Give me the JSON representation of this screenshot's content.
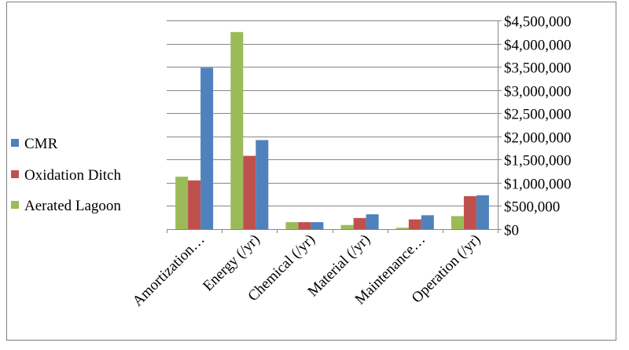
{
  "chart_data": {
    "type": "bar",
    "title": "",
    "xlabel": "",
    "ylabel": "",
    "categories": [
      "Amortization…",
      "Energy (/yr)",
      "Chemical (/yr)",
      "Material (/yr)",
      "Maintenance…",
      "Operation (/yr)"
    ],
    "series": [
      {
        "name": "Aerated Lagoon",
        "color": "#9bbb59",
        "values": [
          1130000,
          4250000,
          150000,
          90000,
          30000,
          280000
        ]
      },
      {
        "name": "Oxidation Ditch",
        "color": "#c0504d",
        "values": [
          1050000,
          1580000,
          150000,
          240000,
          210000,
          710000
        ]
      },
      {
        "name": "CMR",
        "color": "#4f81bd",
        "values": [
          3480000,
          1920000,
          150000,
          320000,
          300000,
          730000
        ]
      }
    ],
    "ylim": [
      0,
      4500000
    ],
    "yticks": [
      0,
      500000,
      1000000,
      1500000,
      2000000,
      2500000,
      3000000,
      3500000,
      4000000,
      4500000
    ],
    "ytick_labels": [
      "$0",
      "$500,000",
      "$1,000,000",
      "$1,500,000",
      "$2,000,000",
      "$2,500,000",
      "$3,000,000",
      "$3,500,000",
      "$4,000,000",
      "$4,500,000"
    ],
    "yaxis_side": "right",
    "grid": true,
    "legend": {
      "position": "left",
      "entries": [
        "CMR",
        "Oxidation Ditch",
        "Aerated Lagoon"
      ]
    }
  }
}
